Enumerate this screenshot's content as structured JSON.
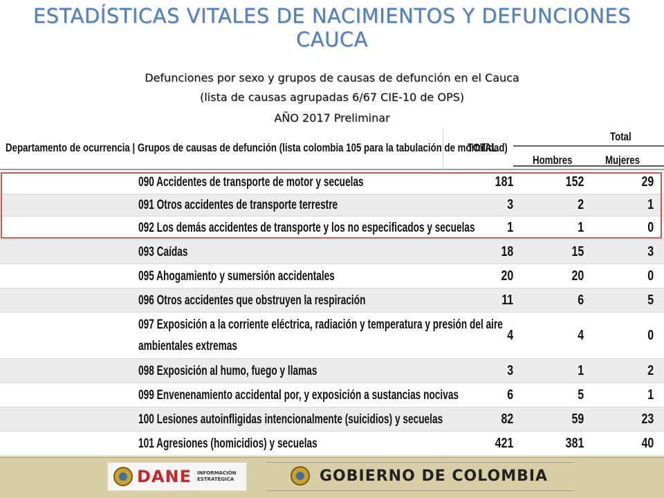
{
  "header": {
    "title_line1": "ESTADÍSTICAS VITALES DE NACIMIENTOS Y DEFUNCIONES",
    "title_line2": "CAUCA",
    "subtitle_line1": "Defunciones por sexo y grupos de causas de defunción en el Cauca",
    "subtitle_line2": "(lista de causas agrupadas 6/67 CIE-10 de OPS)",
    "subtitle_line3": "AÑO 2017 Preliminar"
  },
  "table": {
    "col_group": "Departamento de ocurrencia | Grupos de causas de defunción (lista colombia 105 para la tabulación de mortalidad)",
    "col_total": "TOTAL",
    "col_total_group": "Total",
    "col_hombres": "Hombres",
    "col_mujeres": "Mujeres",
    "rows": [
      {
        "cause": "090 Accidentes de transporte de motor y secuelas",
        "total": "181",
        "hombres": "152",
        "mujeres": "29"
      },
      {
        "cause": "091 Otros accidentes de transporte terrestre",
        "total": "3",
        "hombres": "2",
        "mujeres": "1"
      },
      {
        "cause": "092 Los demás accidentes de transporte y los no especificados y secuelas",
        "total": "1",
        "hombres": "1",
        "mujeres": "0"
      },
      {
        "cause": "093 Caídas",
        "total": "18",
        "hombres": "15",
        "mujeres": "3"
      },
      {
        "cause": "095 Ahogamiento y sumersión accidentales",
        "total": "20",
        "hombres": "20",
        "mujeres": "0"
      },
      {
        "cause": "096 Otros accidentes que obstruyen la respiración",
        "total": "11",
        "hombres": "6",
        "mujeres": "5"
      },
      {
        "cause": "097 Exposición a la corriente eléctrica, radiación y temperatura y presión del aire",
        "cause2": "ambientales extremas",
        "total": "4",
        "hombres": "4",
        "mujeres": "0"
      },
      {
        "cause": "098 Exposición al humo, fuego y llamas",
        "total": "3",
        "hombres": "1",
        "mujeres": "2"
      },
      {
        "cause": "099 Envenenamiento accidental por, y exposición a sustancias nocivas",
        "total": "6",
        "hombres": "5",
        "mujeres": "1"
      },
      {
        "cause": "100 Lesiones autoinfligidas intencionalmente (suicidios) y secuelas",
        "total": "82",
        "hombres": "59",
        "mujeres": "23"
      },
      {
        "cause": "101 Agresiones (homicidios) y secuelas",
        "total": "421",
        "hombres": "381",
        "mujeres": "40"
      }
    ]
  },
  "footer": {
    "dane_word": "DANE",
    "dane_info_1": "INFORMACIÓN",
    "dane_info_2": "ESTRATÉGICA",
    "gov_text": "GOBIERNO DE COLOMBIA"
  },
  "colors": {
    "title": "#4f81bd",
    "highlight": "#d9534f",
    "footer_bg": "#d8cfa6",
    "dane_red": "#c62828"
  }
}
